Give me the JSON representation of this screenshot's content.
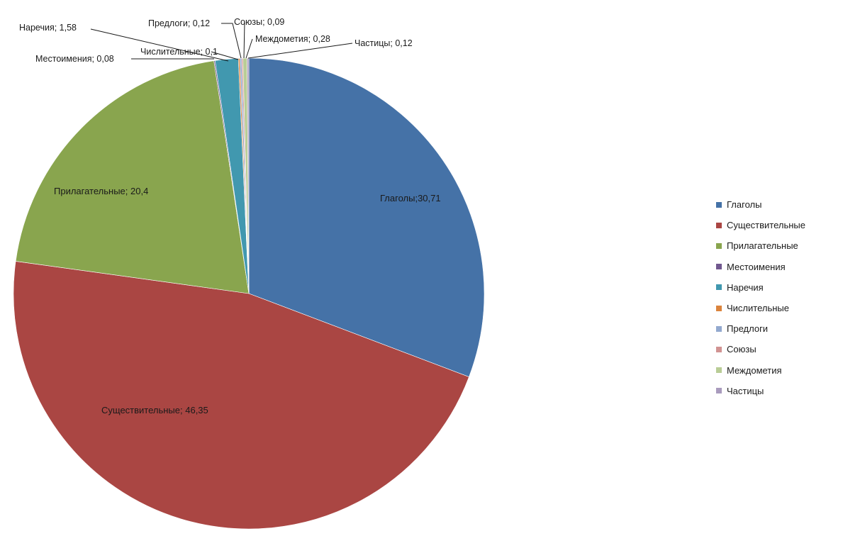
{
  "chart_data": {
    "type": "pie",
    "title": "",
    "legend_position": "right",
    "slices": [
      {
        "name": "Глаголы",
        "value": 30.71,
        "value_text": "30,71",
        "label": "Глаголы;30,71",
        "color": "#4572A7"
      },
      {
        "name": "Существительные",
        "value": 46.35,
        "value_text": "46,35",
        "label": "Существительные; 46,35",
        "color": "#AA4643"
      },
      {
        "name": "Прилагательные",
        "value": 20.4,
        "value_text": "20,4",
        "label": "Прилагательные; 20,4",
        "color": "#89A54E"
      },
      {
        "name": "Местоимения",
        "value": 0.08,
        "value_text": "0,08",
        "label": "Местоимения; 0,08",
        "color": "#71588F"
      },
      {
        "name": "Наречия",
        "value": 1.58,
        "value_text": "1,58",
        "label": "Наречия; 1,58",
        "color": "#4198AF"
      },
      {
        "name": "Числительные",
        "value": 0.1,
        "value_text": "0,1",
        "label": "Числительные; 0,1",
        "color": "#DB843D"
      },
      {
        "name": "Предлоги",
        "value": 0.12,
        "value_text": "0,12",
        "label": "Предлоги; 0,12",
        "color": "#93A9CF"
      },
      {
        "name": "Союзы",
        "value": 0.09,
        "value_text": "0,09",
        "label": "Союзы; 0,09",
        "color": "#D19392"
      },
      {
        "name": "Междометия",
        "value": 0.28,
        "value_text": "0,28",
        "label": "Междометия; 0,28",
        "color": "#B9CD96"
      },
      {
        "name": "Частицы",
        "value": 0.12,
        "value_text": "0,12",
        "label": "Частицы; 0,12",
        "color": "#A99BBD"
      }
    ]
  }
}
